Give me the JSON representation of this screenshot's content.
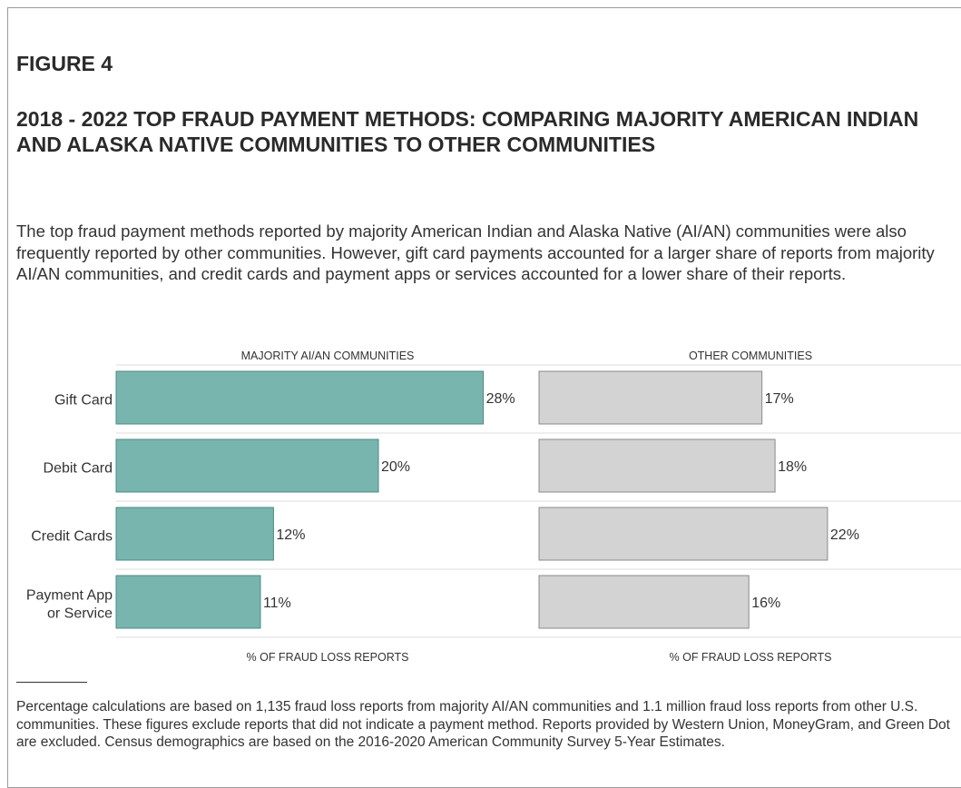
{
  "figure": {
    "label": "FIGURE 4",
    "title": "2018 - 2022 TOP FRAUD PAYMENT METHODS: COMPARING MAJORITY AMERICAN INDIAN AND ALASKA NATIVE COMMUNITIES TO OTHER COMMUNITIES",
    "description": "The top fraud payment methods reported by majority American Indian and Alaska Native (AI/AN) communities were also frequently reported by other communities. However, gift card payments accounted for a larger share of reports from majority AI/AN communities, and credit cards and payment apps or services accounted for a lower share of their reports.",
    "footnote": "Percentage calculations are based on 1,135 fraud loss reports from majority AI/AN communities and 1.1 million fraud loss reports from other U.S. communities. These figures exclude reports that did not indicate a payment method. Reports provided by Western Union, MoneyGram, and Green Dot are excluded. Census demographics are based on the 2016-2020 American Community Survey 5-Year Estimates."
  },
  "chart_data": {
    "type": "bar",
    "orientation": "horizontal",
    "categories": [
      "Gift Card",
      "Debit Card",
      "Credit Cards",
      "Payment App or Service"
    ],
    "category_lines": [
      [
        "Gift Card"
      ],
      [
        "Debit Card"
      ],
      [
        "Credit Cards"
      ],
      [
        "Payment App",
        "or Service"
      ]
    ],
    "value_format": "percent",
    "xlim": [
      0,
      30
    ],
    "panels": [
      {
        "title": "MAJORITY AI/AN COMMUNITIES",
        "xlabel": "% OF FRAUD LOSS REPORTS",
        "values": [
          28,
          20,
          12,
          11
        ],
        "color": "#78b5ae",
        "stroke": "#4a8a83"
      },
      {
        "title": "OTHER COMMUNITIES",
        "xlabel": "% OF FRAUD LOSS REPORTS",
        "values": [
          17,
          18,
          22,
          16
        ],
        "color": "#d3d3d3",
        "stroke": "#8a8a8a"
      }
    ],
    "grid": false,
    "legend": "none"
  }
}
